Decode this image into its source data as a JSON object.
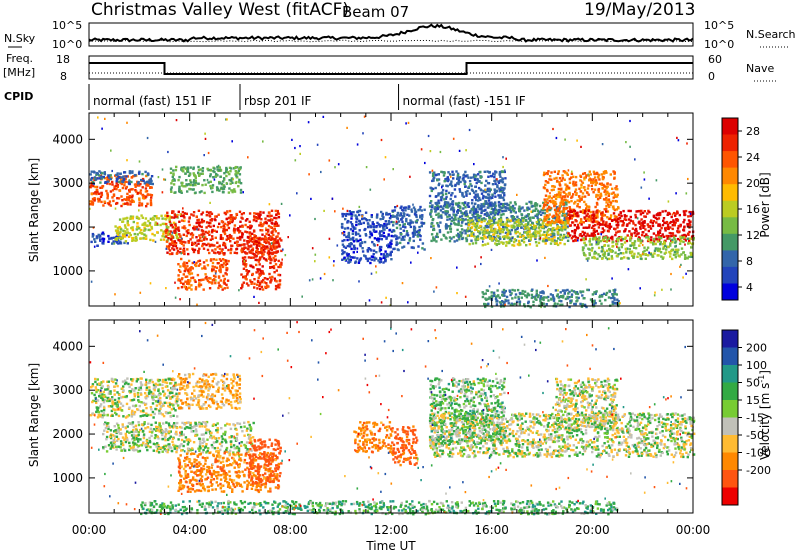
{
  "header": {
    "station": "Christmas Valley West (fitACF)",
    "beam": "Beam 07",
    "date": "19/May/2013"
  },
  "strip": {
    "nsky_label": "N.Sky",
    "nsky_ticks": [
      "10^5",
      "10^0"
    ],
    "nsearch_label": "N.Search",
    "nsearch_ticks": [
      "10^5",
      "10^0"
    ],
    "freq_label_line1": "Freq.",
    "freq_label_line2": "[MHz]",
    "freq_ticks": [
      "18",
      "8"
    ],
    "nave_label": "Nave",
    "nave_ticks": [
      "60",
      "0"
    ],
    "cpid_label": "CPID",
    "cpid_segments": [
      {
        "label": "normal (fast) 151 IF",
        "start_h": 0,
        "end_h": 6
      },
      {
        "label": "rbsp 201 IF",
        "start_h": 6,
        "end_h": 12.3
      },
      {
        "label": "normal (fast) -151 IF",
        "start_h": 12.3,
        "end_h": 24
      }
    ]
  },
  "axes": {
    "ylabel": "Slant Range [km]",
    "xlabel": "Time UT",
    "x_ticks": [
      "00:00",
      "04:00",
      "08:00",
      "12:00",
      "16:00",
      "20:00",
      "00:00"
    ],
    "y_ticks": [
      "1000",
      "2000",
      "3000",
      "4000"
    ]
  },
  "power_colorbar": {
    "title": "Power [dB]",
    "ticks": [
      "4",
      "8",
      "12",
      "16",
      "20",
      "24",
      "28"
    ],
    "colors": [
      "#0000dd",
      "#2244bb",
      "#3366aa",
      "#449966",
      "#77bb44",
      "#bbcc22",
      "#ffbb00",
      "#ff8800",
      "#ff5500",
      "#ee2200",
      "#dd0000"
    ]
  },
  "velocity_colorbar": {
    "title": "Velocity [m s",
    "title_sup": "-1",
    "title_end": "]",
    "ticks": [
      "200",
      "100",
      "50",
      "15",
      "-15",
      "-50",
      "-100",
      "-200"
    ],
    "colors": [
      "#1a1aa0",
      "#2255aa",
      "#229988",
      "#33aa44",
      "#77cc33",
      "#c0c0b8",
      "#ffbb33",
      "#ff8800",
      "#ff5511",
      "#ee0000"
    ]
  },
  "chart_data": [
    {
      "type": "heatmap",
      "title": "Power [dB]",
      "xlabel": "Time UT",
      "ylabel": "Slant Range [km]",
      "xlim": [
        0,
        24
      ],
      "ylim": [
        200,
        4600
      ],
      "colorbar_range": [
        0,
        30
      ],
      "regions": [
        {
          "t0": 0.0,
          "t1": 2.5,
          "r0": 2500,
          "r1": 3200,
          "value": 24
        },
        {
          "t0": 0.0,
          "t1": 2.5,
          "r0": 3000,
          "r1": 3300,
          "value": 8
        },
        {
          "t0": 0.0,
          "t1": 1.5,
          "r0": 1600,
          "r1": 1900,
          "value": 6
        },
        {
          "t0": 1.0,
          "t1": 3.5,
          "r0": 1700,
          "r1": 2300,
          "value": 16
        },
        {
          "t0": 3.0,
          "t1": 7.5,
          "r0": 1400,
          "r1": 2400,
          "value": 26
        },
        {
          "t0": 3.5,
          "t1": 5.5,
          "r0": 600,
          "r1": 1300,
          "value": 24
        },
        {
          "t0": 6.0,
          "t1": 7.6,
          "r0": 600,
          "r1": 1800,
          "value": 26
        },
        {
          "t0": 3.2,
          "t1": 6.0,
          "r0": 2800,
          "r1": 3400,
          "value": 12
        },
        {
          "t0": 10.0,
          "t1": 12.0,
          "r0": 1200,
          "r1": 2400,
          "value": 6
        },
        {
          "t0": 12.0,
          "t1": 13.3,
          "r0": 1500,
          "r1": 2500,
          "value": 8
        },
        {
          "t0": 13.5,
          "t1": 19.0,
          "r0": 1700,
          "r1": 2600,
          "value": 10
        },
        {
          "t0": 13.5,
          "t1": 16.5,
          "r0": 2300,
          "r1": 3300,
          "value": 8
        },
        {
          "t0": 15.0,
          "t1": 19.0,
          "r0": 1600,
          "r1": 2200,
          "value": 16
        },
        {
          "t0": 18.0,
          "t1": 21.0,
          "r0": 2100,
          "r1": 3300,
          "value": 22
        },
        {
          "t0": 19.0,
          "t1": 24.0,
          "r0": 1700,
          "r1": 2400,
          "value": 28
        },
        {
          "t0": 19.5,
          "t1": 24.0,
          "r0": 1300,
          "r1": 1800,
          "value": 14
        },
        {
          "t0": 15.5,
          "t1": 21.0,
          "r0": 200,
          "r1": 600,
          "value": 10
        }
      ]
    },
    {
      "type": "heatmap",
      "title": "Velocity [m s-1]",
      "xlabel": "Time UT",
      "ylabel": "Slant Range [km]",
      "xlim": [
        0,
        24
      ],
      "ylim": [
        200,
        4600
      ],
      "colorbar_range": [
        -250,
        250
      ],
      "regions": [
        {
          "t0": 0.0,
          "t1": 3.5,
          "r0": 2400,
          "r1": 3300,
          "value": 0
        },
        {
          "t0": 0.5,
          "t1": 6.5,
          "r0": 1600,
          "r1": 2300,
          "value": 0
        },
        {
          "t0": 3.5,
          "t1": 6.0,
          "r0": 2600,
          "r1": 3400,
          "value": -40
        },
        {
          "t0": 3.5,
          "t1": 7.5,
          "r0": 700,
          "r1": 1600,
          "value": -80
        },
        {
          "t0": 6.3,
          "t1": 7.6,
          "r0": 900,
          "r1": 1900,
          "value": -150
        },
        {
          "t0": 10.5,
          "t1": 12.0,
          "r0": 1600,
          "r1": 2300,
          "value": -80
        },
        {
          "t0": 12.0,
          "t1": 13.0,
          "r0": 1300,
          "r1": 2200,
          "value": -120
        },
        {
          "t0": 13.5,
          "t1": 16.5,
          "r0": 1800,
          "r1": 3300,
          "value": 20
        },
        {
          "t0": 13.5,
          "t1": 24.0,
          "r0": 1500,
          "r1": 2500,
          "value": 0
        },
        {
          "t0": 18.5,
          "t1": 21.0,
          "r0": 2100,
          "r1": 3300,
          "value": 0
        },
        {
          "t0": 2.0,
          "t1": 21.0,
          "r0": 200,
          "r1": 500,
          "value": 30
        }
      ]
    }
  ]
}
